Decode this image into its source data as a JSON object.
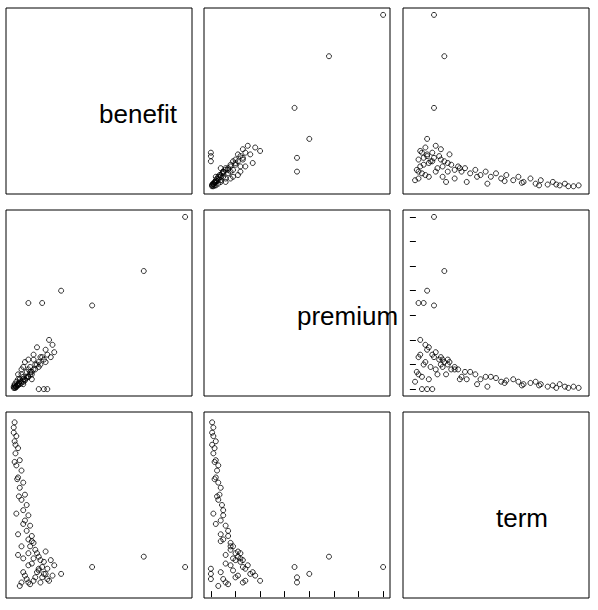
{
  "chart_data": {
    "type": "scatter_matrix",
    "variables": [
      "benefit",
      "premium",
      "term"
    ],
    "lims": {
      "benefit": [
        -0.4,
        10.4
      ],
      "premium": [
        -0.28,
        7.28
      ],
      "term": [
        -0.4,
        10.4
      ]
    },
    "ticks": {
      "premium": [
        0,
        1,
        2,
        3,
        4,
        5,
        6,
        7
      ]
    },
    "tick_labels": false,
    "marker": "circle",
    "color": "#000000",
    "values": {
      "benefit": [
        0.1,
        0.05,
        0.2,
        0.1,
        0.3,
        0.15,
        0.4,
        0.2,
        0.5,
        0.3,
        0.6,
        0.4,
        0.7,
        0.5,
        0.8,
        0.6,
        0.9,
        0.7,
        1.0,
        0.8,
        1.1,
        0.9,
        1.2,
        1.0,
        1.3,
        1.4,
        1.5,
        1.2,
        1.6,
        1.8,
        1.1,
        0.9,
        1.7,
        2.0,
        1.5,
        0.6,
        1.9,
        2.3,
        1.3,
        0.8,
        2.1,
        1.6,
        1.0,
        0.4,
        1.8,
        2.0,
        1.5,
        0.3,
        0.5,
        0.2,
        0.35,
        0.25,
        0.1,
        0.15,
        0.05,
        0.6,
        1.9,
        2.4,
        1.4,
        0.7,
        1.2,
        0.5,
        2.2,
        0.9,
        0.3,
        0.6,
        1.1,
        10.0,
        7.6,
        4.6,
        2.8,
        1.7,
        0.9
      ],
      "premium": [
        0.05,
        0.1,
        0.1,
        0.2,
        0.15,
        0.1,
        0.2,
        0.3,
        0.25,
        0.2,
        0.3,
        0.4,
        0.35,
        0.3,
        0.45,
        0.5,
        0.5,
        0.4,
        0.6,
        0.7,
        0.7,
        0.5,
        0.8,
        0.9,
        0.8,
        1.0,
        1.1,
        1.2,
        1.0,
        1.2,
        0.6,
        0.8,
        1.3,
        1.4,
        0.9,
        0.4,
        1.6,
        1.8,
        1.0,
        0.5,
        2.0,
        1.3,
        0.7,
        0.3,
        0.0,
        0.0,
        0.0,
        0.6,
        0.8,
        0.1,
        0.25,
        0.15,
        0.15,
        0.05,
        0.05,
        0.9,
        1.1,
        1.5,
        1.7,
        1.1,
        1.4,
        0.6,
        1.3,
        1.2,
        0.4,
        0.2,
        0.4,
        7.0,
        4.8,
        3.4,
        4.0,
        3.5,
        3.5
      ],
      "term": [
        9.8,
        9.5,
        9.0,
        8.7,
        8.3,
        8.0,
        7.6,
        7.3,
        7.0,
        6.6,
        6.3,
        6.0,
        5.6,
        5.3,
        5.0,
        4.7,
        4.4,
        4.1,
        3.8,
        3.5,
        3.2,
        3.0,
        2.8,
        2.6,
        2.4,
        2.2,
        2.0,
        1.9,
        1.8,
        1.7,
        1.6,
        1.5,
        1.4,
        1.3,
        1.2,
        1.1,
        1.0,
        0.9,
        0.8,
        0.7,
        0.6,
        0.5,
        0.4,
        0.3,
        1.0,
        0.7,
        1.3,
        2.1,
        2.6,
        4.5,
        5.5,
        6.5,
        7.5,
        8.5,
        9.2,
        1.9,
        2.3,
        1.5,
        1.1,
        0.9,
        0.6,
        0.5,
        1.8,
        2.2,
        3.3,
        3.9,
        2.9,
        1.4,
        2.0,
        1.4,
        1.0,
        0.8,
        0.5
      ]
    }
  }
}
